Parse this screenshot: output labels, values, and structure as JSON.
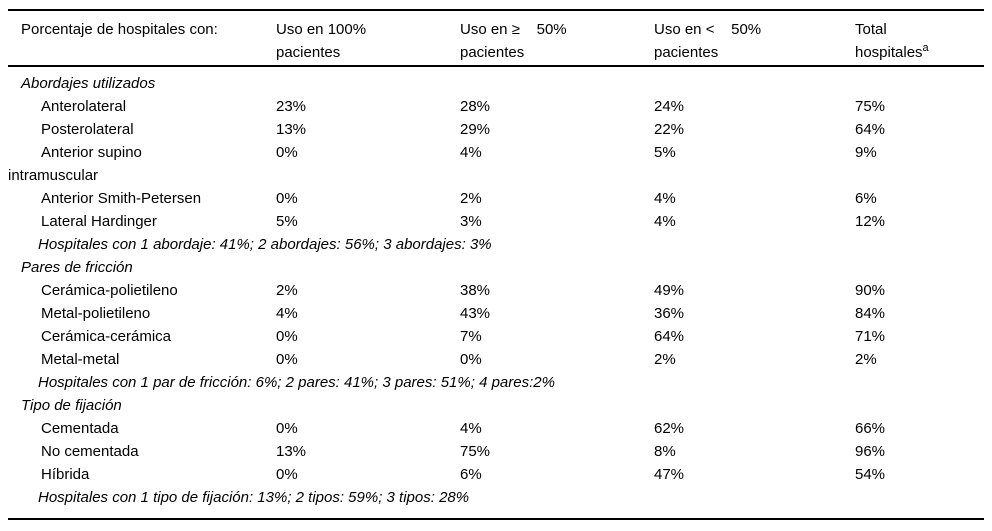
{
  "colors": {
    "background": "#ffffff",
    "text": "#000000",
    "border": "#000000"
  },
  "table": {
    "columns": [
      {
        "label": "Porcentaje de hospitales con:"
      },
      {
        "label": "Uso en 100%\npacientes"
      },
      {
        "label": "Uso en ≥    50%\npacientes"
      },
      {
        "label": "Uso en <    50%\npacientes"
      },
      {
        "label": "Total\nhospitales",
        "superscript": "a"
      }
    ],
    "sections": [
      {
        "title": "Abordajes utilizados",
        "rows": [
          {
            "label": "Anterolateral",
            "values": [
              "23%",
              "28%",
              "24%",
              "75%"
            ]
          },
          {
            "label": "Posterolateral",
            "values": [
              "13%",
              "29%",
              "22%",
              "64%"
            ]
          },
          {
            "label": "Anterior supino intramuscular",
            "wrap": true,
            "values": [
              "0%",
              "4%",
              "5%",
              "9%"
            ]
          },
          {
            "label": "Anterior Smith-Petersen",
            "values": [
              "0%",
              "2%",
              "4%",
              "6%"
            ]
          },
          {
            "label": "Lateral Hardinger",
            "values": [
              "5%",
              "3%",
              "4%",
              "12%"
            ]
          }
        ],
        "note": "Hospitales con 1 abordaje: 41%; 2 abordajes: 56%; 3 abordajes: 3%"
      },
      {
        "title": "Pares de fricción",
        "rows": [
          {
            "label": "Cerámica-polietileno",
            "values": [
              "2%",
              "38%",
              "49%",
              "90%"
            ]
          },
          {
            "label": "Metal-polietileno",
            "values": [
              "4%",
              "43%",
              "36%",
              "84%"
            ]
          },
          {
            "label": "Cerámica-cerámica",
            "values": [
              "0%",
              "7%",
              "64%",
              "71%"
            ]
          },
          {
            "label": "Metal-metal",
            "values": [
              "0%",
              "0%",
              "2%",
              "2%"
            ]
          }
        ],
        "note": "Hospitales con 1 par de fricción: 6%; 2 pares: 41%; 3 pares: 51%; 4 pares:2%"
      },
      {
        "title": "Tipo de fijación",
        "rows": [
          {
            "label": "Cementada",
            "values": [
              "0%",
              "4%",
              "62%",
              "66%"
            ]
          },
          {
            "label": "No cementada",
            "values": [
              "13%",
              "75%",
              "8%",
              "96%"
            ]
          },
          {
            "label": "Híbrida",
            "values": [
              "0%",
              "6%",
              "47%",
              "54%"
            ]
          }
        ],
        "note": "Hospitales con 1 tipo de fijación: 13%; 2 tipos: 59%; 3 tipos: 28%"
      }
    ]
  }
}
